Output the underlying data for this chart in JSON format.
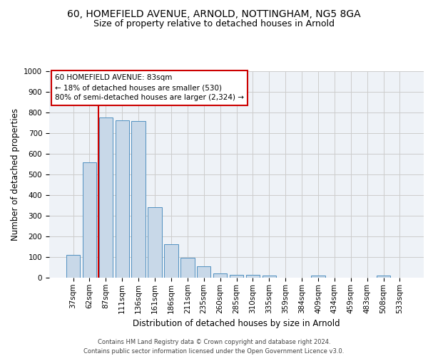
{
  "title_line1": "60, HOMEFIELD AVENUE, ARNOLD, NOTTINGHAM, NG5 8GA",
  "title_line2": "Size of property relative to detached houses in Arnold",
  "xlabel": "Distribution of detached houses by size in Arnold",
  "ylabel": "Number of detached properties",
  "footer_line1": "Contains HM Land Registry data © Crown copyright and database right 2024.",
  "footer_line2": "Contains public sector information licensed under the Open Government Licence v3.0.",
  "categories": [
    "37sqm",
    "62sqm",
    "87sqm",
    "111sqm",
    "136sqm",
    "161sqm",
    "186sqm",
    "211sqm",
    "235sqm",
    "260sqm",
    "285sqm",
    "310sqm",
    "335sqm",
    "359sqm",
    "384sqm",
    "409sqm",
    "434sqm",
    "459sqm",
    "483sqm",
    "508sqm",
    "533sqm"
  ],
  "values": [
    110,
    558,
    775,
    762,
    758,
    343,
    163,
    96,
    55,
    20,
    15,
    14,
    12,
    0,
    0,
    11,
    0,
    0,
    0,
    11,
    0
  ],
  "bar_color": "#c8d8e8",
  "bar_edge_color": "#5090c0",
  "vline_color": "#cc0000",
  "annotation_text": "60 HOMEFIELD AVENUE: 83sqm\n← 18% of detached houses are smaller (530)\n80% of semi-detached houses are larger (2,324) →",
  "annotation_box_color": "#ffffff",
  "annotation_box_edge_color": "#cc0000",
  "ylim": [
    0,
    1000
  ],
  "yticks": [
    0,
    100,
    200,
    300,
    400,
    500,
    600,
    700,
    800,
    900,
    1000
  ],
  "grid_color": "#cccccc",
  "bg_color": "#eef2f7",
  "title1_fontsize": 10,
  "title2_fontsize": 9,
  "xlabel_fontsize": 8.5,
  "ylabel_fontsize": 8.5,
  "tick_fontsize": 7.5,
  "footer_fontsize": 6,
  "annotation_fontsize": 7.5
}
